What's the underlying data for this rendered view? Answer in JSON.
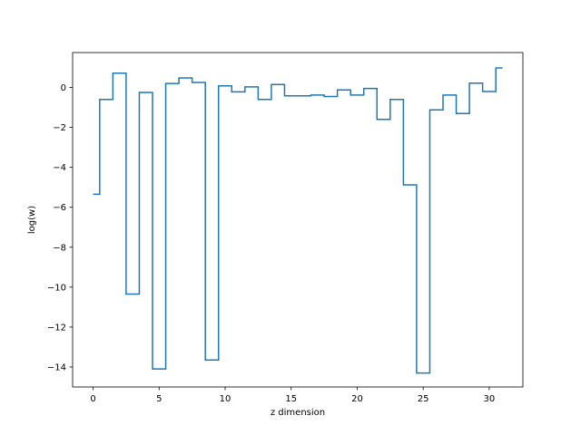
{
  "chart_data": {
    "type": "line",
    "drawstyle": "steps-post",
    "xlabel": "z dimension",
    "ylabel": "log(w)",
    "xlim": [
      -1.55,
      32.55
    ],
    "ylim": [
      -15.0,
      1.75
    ],
    "xticks": [
      0,
      5,
      10,
      15,
      20,
      25,
      30
    ],
    "yticks": [
      -14,
      -12,
      -10,
      -8,
      -6,
      -4,
      -2,
      0
    ],
    "grid": false,
    "series": [
      {
        "color": "#1f77b4",
        "x": [
          0,
          0.5,
          1.5,
          2.5,
          3.5,
          4.5,
          5.5,
          6.5,
          7.5,
          8.5,
          9.5,
          10.5,
          11.5,
          12.5,
          13.5,
          14.5,
          15.5,
          16.5,
          17.5,
          18.5,
          19.5,
          20.5,
          21.5,
          22.5,
          23.5,
          24.5,
          25.5,
          26.5,
          27.5,
          28.5,
          29.5,
          30.5,
          31
        ],
        "y": [
          -5.35,
          -0.6,
          0.72,
          -10.35,
          -0.25,
          -14.1,
          0.2,
          0.48,
          0.25,
          -13.65,
          0.08,
          -0.22,
          0.03,
          -0.6,
          0.15,
          -0.42,
          -0.42,
          -0.38,
          -0.45,
          -0.12,
          -0.38,
          -0.05,
          -1.6,
          -0.6,
          -4.88,
          -14.3,
          -1.12,
          -0.38,
          -1.3,
          0.22,
          -0.2,
          0.98,
          0.98
        ]
      }
    ]
  }
}
